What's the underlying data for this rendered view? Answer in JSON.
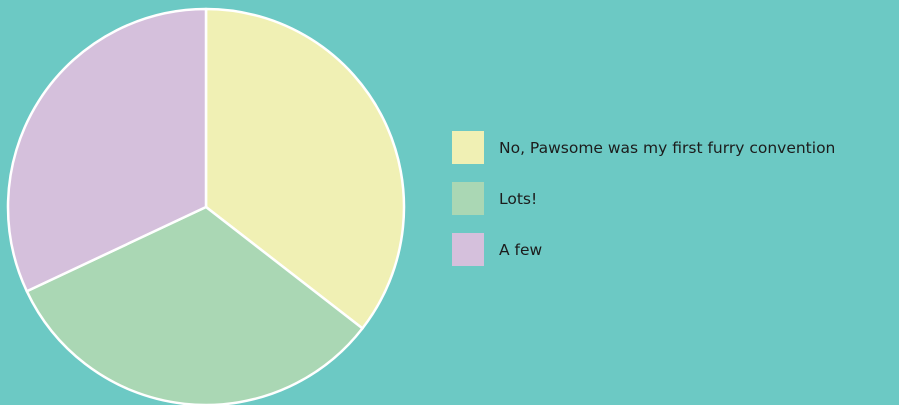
{
  "colors": {
    "background": "#6cc9c4",
    "slice_border": "#ffffff"
  },
  "chart_data": {
    "type": "pie",
    "title": "",
    "slices": [
      {
        "label": "No, Pawsome was my first furry convention",
        "value": 35.5,
        "color": "#f0f0b4"
      },
      {
        "label": "Lots!",
        "value": 32.5,
        "color": "#aad7b4"
      },
      {
        "label": "A few",
        "value": 32.0,
        "color": "#d5c0dc"
      }
    ],
    "start_angle_deg": 0,
    "direction": "clockwise",
    "legend": {
      "position": "right"
    }
  }
}
